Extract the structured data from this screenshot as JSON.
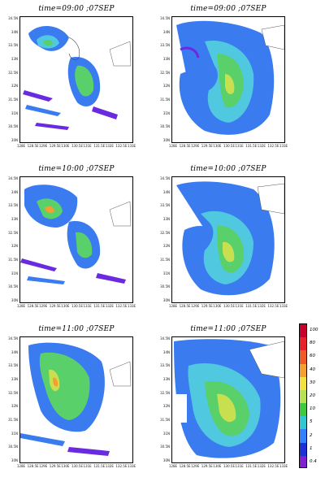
{
  "panels": [
    {
      "title": "time=09:00 ;07SEP",
      "y_ticks": [
        "34.5N",
        "34N",
        "33.5N",
        "33N",
        "32.5N",
        "32N",
        "31.5N",
        "31N",
        "30.5N",
        "30N"
      ],
      "x_ticks": [
        "128E",
        "128.5E",
        "129E",
        "129.5E",
        "130E",
        "130.5E",
        "131E",
        "131.5E",
        "132E",
        "132.5E",
        "133E"
      ]
    },
    {
      "title": "time=09:00 ;07SEP",
      "y_ticks": [
        "34.5N",
        "34N",
        "33.5N",
        "33N",
        "32.5N",
        "32N",
        "31.5N",
        "31N",
        "30.5N",
        "30N"
      ],
      "x_ticks": [
        "128E",
        "128.5E",
        "129E",
        "129.5E",
        "130E",
        "130.5E",
        "131E",
        "131.5E",
        "132E",
        "132.5E",
        "133E"
      ]
    },
    {
      "title": "time=10:00 ;07SEP",
      "y_ticks": [
        "34.5N",
        "34N",
        "33.5N",
        "33N",
        "32.5N",
        "32N",
        "31.5N",
        "31N",
        "30.5N",
        "30N"
      ],
      "x_ticks": [
        "128E",
        "128.5E",
        "129E",
        "129.5E",
        "130E",
        "130.5E",
        "131E",
        "131.5E",
        "132E",
        "132.5E",
        "133E"
      ]
    },
    {
      "title": "time=10:00 ;07SEP",
      "y_ticks": [
        "34.5N",
        "34N",
        "33.5N",
        "33N",
        "32.5N",
        "32N",
        "31.5N",
        "31N",
        "30.5N",
        "30N"
      ],
      "x_ticks": [
        "128E",
        "128.5E",
        "129E",
        "129.5E",
        "130E",
        "130.5E",
        "131E",
        "131.5E",
        "132E",
        "132.5E",
        "133E"
      ]
    },
    {
      "title": "time=11:00 ;07SEP",
      "y_ticks": [
        "34.5N",
        "34N",
        "33.5N",
        "33N",
        "32.5N",
        "32N",
        "31.5N",
        "31N",
        "30.5N",
        "30N"
      ],
      "x_ticks": [
        "128E",
        "128.5E",
        "129E",
        "129.5E",
        "130E",
        "130.5E",
        "131E",
        "131.5E",
        "132E",
        "132.5E",
        "133E"
      ]
    },
    {
      "title": "time=11:00 ;07SEP",
      "y_ticks": [
        "34.5N",
        "34N",
        "33.5N",
        "33N",
        "32.5N",
        "32N",
        "31.5N",
        "31N",
        "30.5N",
        "30N"
      ],
      "x_ticks": [
        "128E",
        "128.5E",
        "129E",
        "129.5E",
        "130E",
        "130.5E",
        "131E",
        "131.5E",
        "132E",
        "132.5E",
        "133E"
      ]
    }
  ],
  "colorbar": {
    "labels": [
      "100",
      "80",
      "60",
      "40",
      "30",
      "20",
      "10",
      "5",
      "2",
      "1",
      "0.4"
    ],
    "colors": [
      "#c8002a",
      "#e8202a",
      "#f05a28",
      "#f4a030",
      "#f0e040",
      "#b8e050",
      "#40c840",
      "#30c8d0",
      "#3080ff",
      "#2030d8",
      "#8020d0"
    ]
  }
}
